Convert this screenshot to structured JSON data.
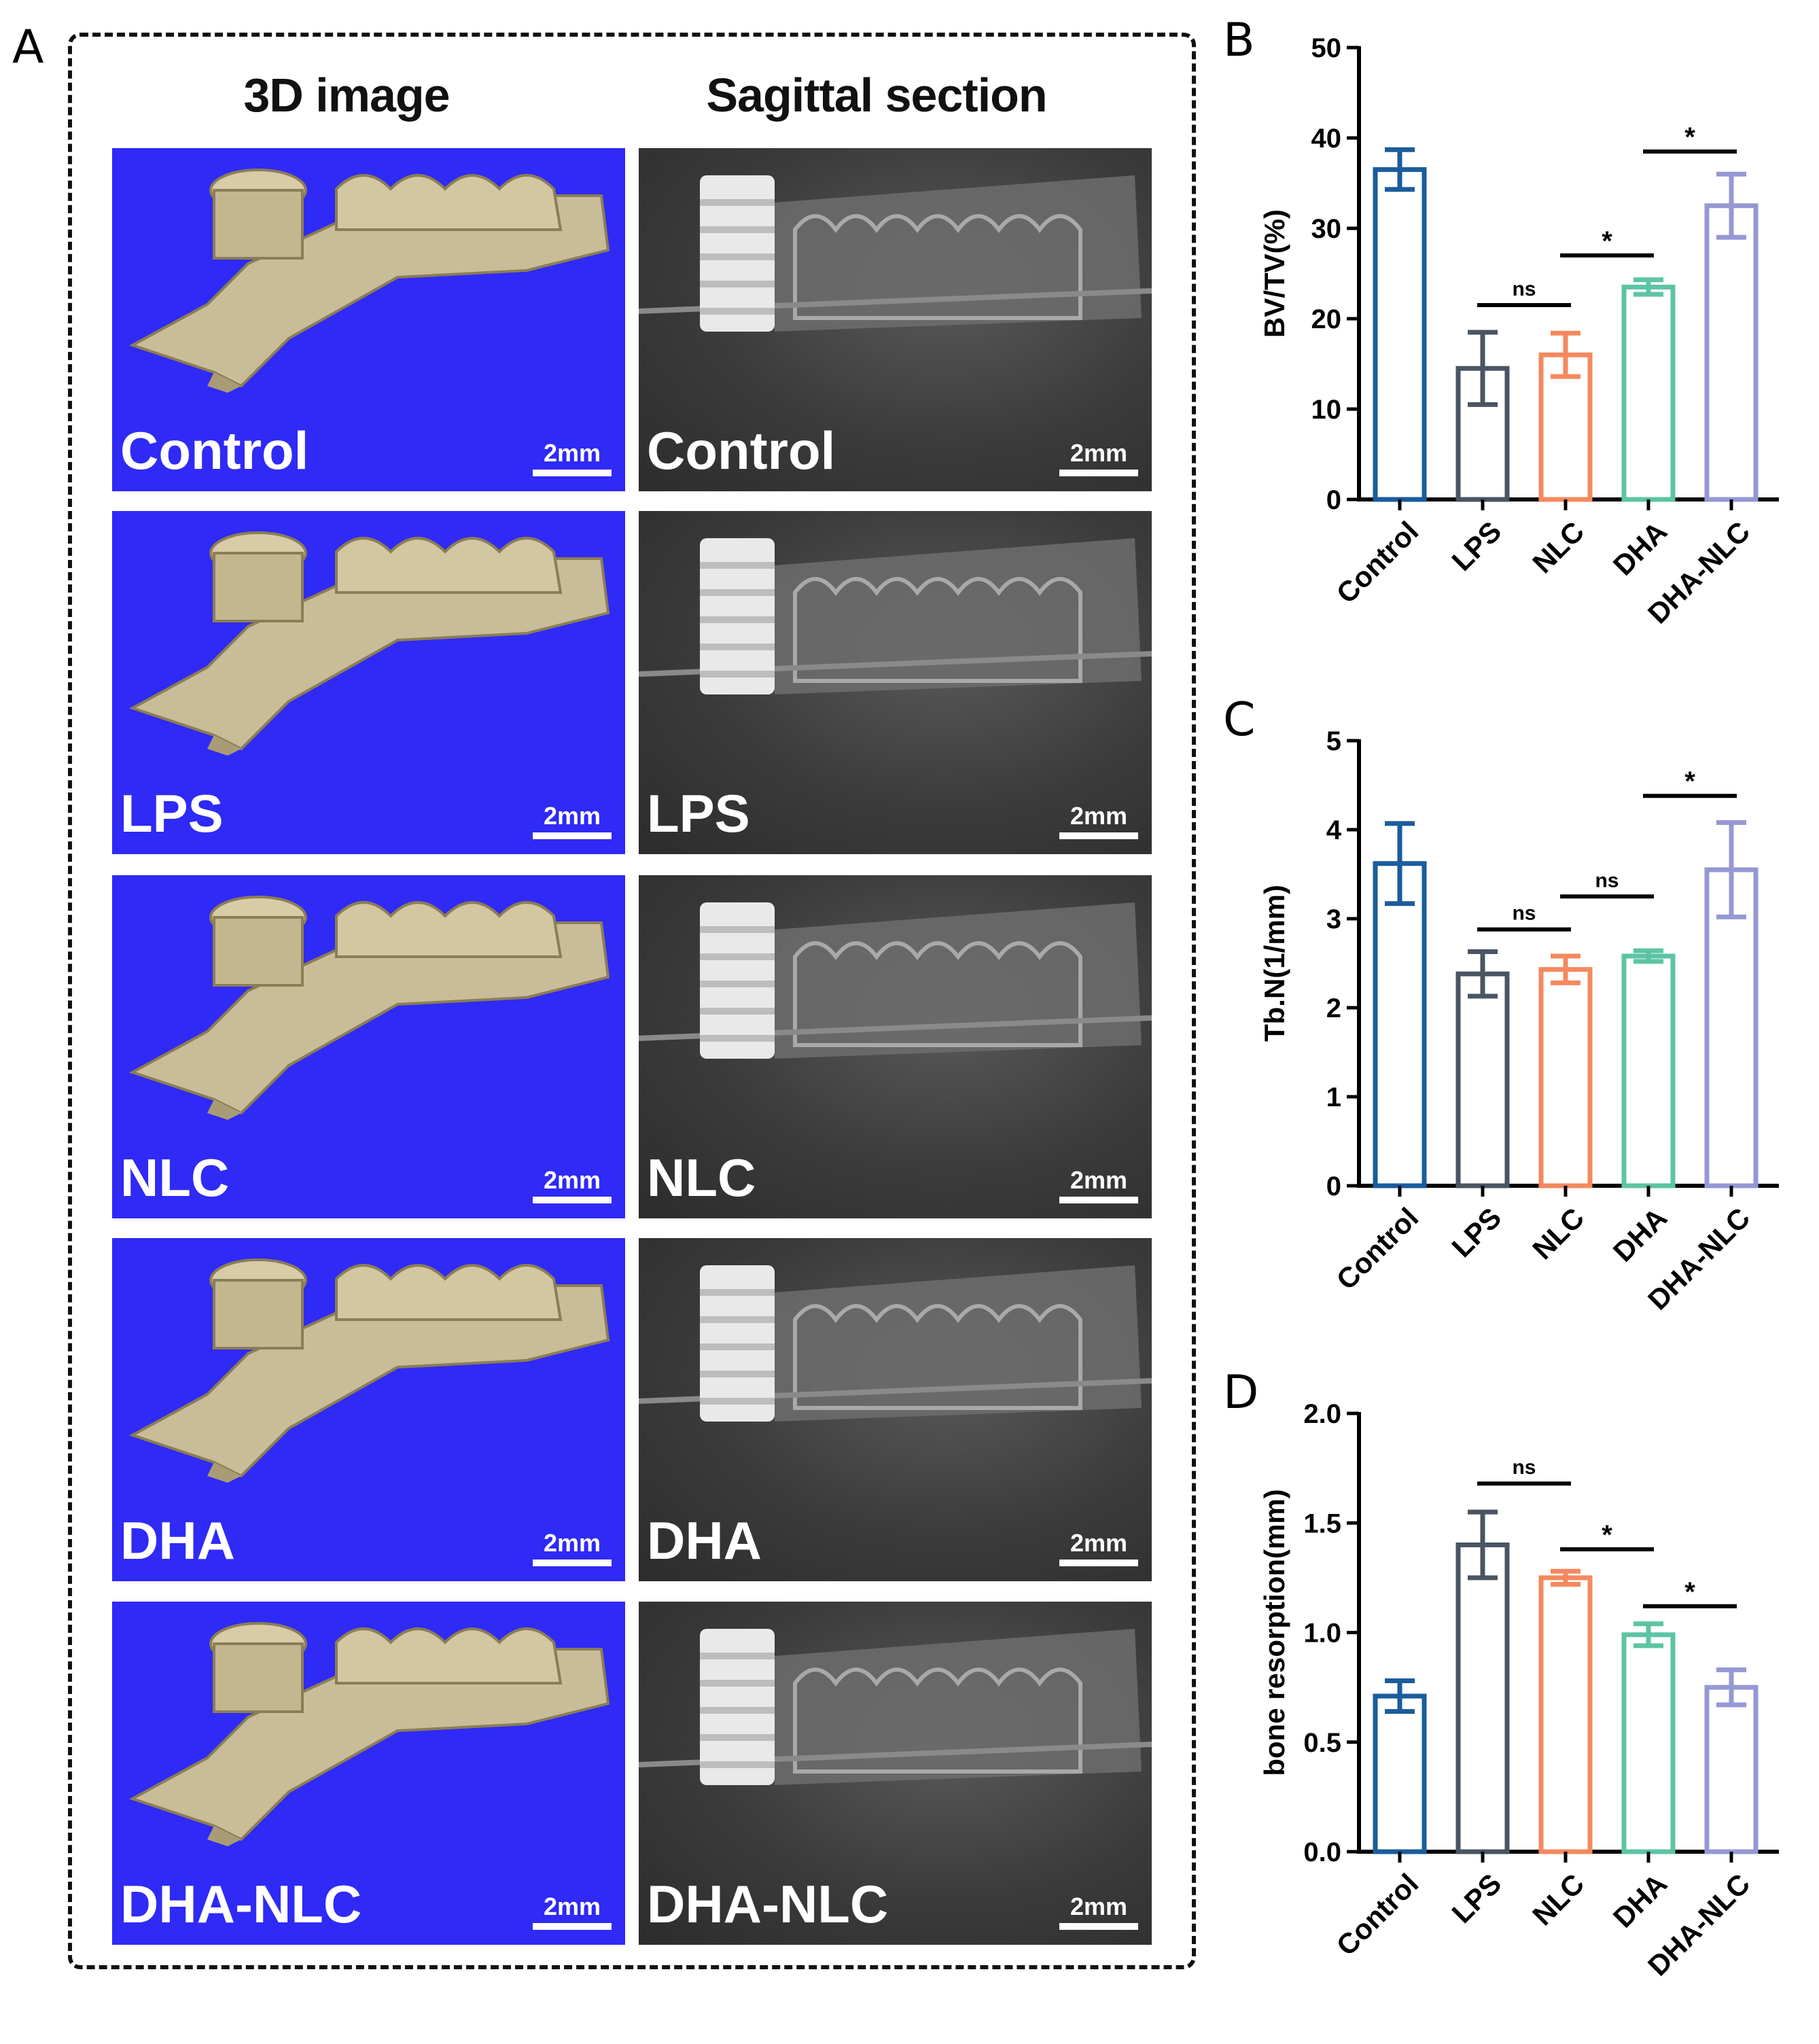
{
  "panels": {
    "a": "A",
    "b": "B",
    "c": "C",
    "d": "D"
  },
  "columns": {
    "left": "3D image",
    "right": "Sagittal section"
  },
  "groups": [
    "Control",
    "LPS",
    "NLC",
    "DHA",
    "DHA-NLC"
  ],
  "scale_label": "2mm",
  "colors": {
    "tile_blue": "#2f2af5",
    "Control": "#1a5c9c",
    "LPS": "#4a5563",
    "NLC": "#f4895f",
    "DHA": "#5cc4a4",
    "DHA-NLC": "#9598d4"
  },
  "chart_data": [
    {
      "type": "bar",
      "panel": "B",
      "categories": [
        "Control",
        "LPS",
        "NLC",
        "DHA",
        "DHA-NLC"
      ],
      "values": [
        36.5,
        14.5,
        16.0,
        23.5,
        32.5
      ],
      "errors": [
        2.2,
        4.0,
        2.4,
        0.8,
        3.5
      ],
      "ylabel": "BV/TV(%)",
      "ylim": [
        0,
        50
      ],
      "yticks": [
        0,
        10,
        20,
        30,
        40,
        50
      ],
      "significance": [
        {
          "from": 1,
          "to": 2,
          "label": "ns",
          "y": 21.5
        },
        {
          "from": 2,
          "to": 3,
          "label": "*",
          "y": 27
        },
        {
          "from": 3,
          "to": 4,
          "label": "*",
          "y": 38.5
        }
      ]
    },
    {
      "type": "bar",
      "panel": "C",
      "categories": [
        "Control",
        "LPS",
        "NLC",
        "DHA",
        "DHA-NLC"
      ],
      "values": [
        3.62,
        2.38,
        2.43,
        2.58,
        3.55
      ],
      "errors": [
        0.45,
        0.25,
        0.15,
        0.06,
        0.53
      ],
      "ylabel": "Tb.N(1/mm)",
      "ylim": [
        0,
        5
      ],
      "yticks": [
        0,
        1,
        2,
        3,
        4,
        5
      ],
      "significance": [
        {
          "from": 1,
          "to": 2,
          "label": "ns",
          "y": 2.88
        },
        {
          "from": 2,
          "to": 3,
          "label": "ns",
          "y": 3.25
        },
        {
          "from": 3,
          "to": 4,
          "label": "*",
          "y": 4.38
        }
      ]
    },
    {
      "type": "bar",
      "panel": "D",
      "categories": [
        "Control",
        "LPS",
        "NLC",
        "DHA",
        "DHA-NLC"
      ],
      "values": [
        0.71,
        1.4,
        1.25,
        0.99,
        0.75
      ],
      "errors": [
        0.07,
        0.15,
        0.03,
        0.05,
        0.08
      ],
      "ylabel": "bone resorption(mm)",
      "ylim": [
        0,
        2.0
      ],
      "yticks": [
        "0.0",
        "0.5",
        "1.0",
        "1.5",
        "2.0"
      ],
      "significance": [
        {
          "from": 1,
          "to": 2,
          "label": "ns",
          "y": 1.68
        },
        {
          "from": 2,
          "to": 3,
          "label": "*",
          "y": 1.38
        },
        {
          "from": 3,
          "to": 4,
          "label": "*",
          "y": 1.12
        }
      ]
    }
  ]
}
